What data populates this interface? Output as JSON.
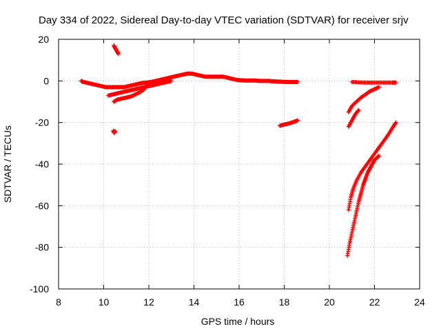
{
  "chart_data": {
    "type": "scatter",
    "title": "Day 334 of 2022, Sidereal Day-to-day VTEC variation (SDTVAR) for receiver srjv",
    "xlabel": "GPS time / hours",
    "ylabel": "SDTVAR / TECUs",
    "xlim": [
      8,
      24
    ],
    "ylim": [
      -100,
      20
    ],
    "xticks": [
      8,
      10,
      12,
      14,
      16,
      18,
      20,
      22,
      24
    ],
    "yticks": [
      -100,
      -80,
      -60,
      -40,
      -20,
      0,
      20
    ],
    "xtick_labels": [
      "8",
      "10",
      "12",
      "14",
      "16",
      "18",
      "20",
      "22",
      "24"
    ],
    "ytick_labels": [
      "-100",
      "-80",
      "-60",
      "-40",
      "-20",
      "0",
      "20"
    ],
    "grid": true,
    "marker_color": "#ff0000",
    "series": [
      {
        "name": "arc-main",
        "points": [
          [
            9.0,
            0
          ],
          [
            9.1,
            -0.5
          ],
          [
            9.3,
            -1
          ],
          [
            9.5,
            -1.5
          ],
          [
            9.7,
            -2
          ],
          [
            9.9,
            -2.5
          ],
          [
            10.1,
            -3
          ],
          [
            10.3,
            -3
          ],
          [
            10.5,
            -3
          ],
          [
            10.7,
            -3
          ],
          [
            10.9,
            -3
          ],
          [
            11.1,
            -2.5
          ],
          [
            11.3,
            -2
          ],
          [
            11.5,
            -1.5
          ],
          [
            11.7,
            -1
          ],
          [
            11.9,
            -0.8
          ],
          [
            12.1,
            -0.5
          ],
          [
            12.3,
            0
          ],
          [
            12.5,
            0.5
          ],
          [
            12.7,
            1
          ],
          [
            12.9,
            1.5
          ],
          [
            13.1,
            2
          ],
          [
            13.3,
            2.5
          ],
          [
            13.5,
            3
          ],
          [
            13.7,
            3.5
          ],
          [
            13.9,
            3.5
          ],
          [
            14.1,
            3
          ],
          [
            14.3,
            2.5
          ],
          [
            14.5,
            2
          ],
          [
            14.7,
            2
          ],
          [
            14.9,
            2
          ],
          [
            15.1,
            2
          ],
          [
            15.3,
            2
          ],
          [
            15.5,
            1.5
          ],
          [
            15.7,
            1
          ],
          [
            15.9,
            0.5
          ],
          [
            16.1,
            0.3
          ],
          [
            16.3,
            0.2
          ],
          [
            16.5,
            0.2
          ],
          [
            16.7,
            0.2
          ],
          [
            16.9,
            0
          ],
          [
            17.1,
            0
          ],
          [
            17.3,
            0
          ],
          [
            17.5,
            -0.2
          ],
          [
            17.7,
            -0.3
          ],
          [
            17.9,
            -0.4
          ],
          [
            18.1,
            -0.5
          ],
          [
            18.3,
            -0.5
          ],
          [
            18.5,
            -0.5
          ],
          [
            18.6,
            -0.5
          ]
        ]
      },
      {
        "name": "arc-lower",
        "points": [
          [
            10.2,
            -7
          ],
          [
            10.4,
            -6.5
          ],
          [
            10.6,
            -6
          ],
          [
            10.8,
            -5.5
          ],
          [
            11.0,
            -5
          ],
          [
            11.2,
            -4.5
          ],
          [
            11.4,
            -4
          ],
          [
            11.6,
            -3.5
          ],
          [
            11.8,
            -3
          ],
          [
            12.0,
            -2.5
          ],
          [
            12.2,
            -2
          ],
          [
            12.4,
            -1.5
          ],
          [
            12.6,
            -1
          ],
          [
            12.8,
            -0.5
          ],
          [
            13.0,
            0
          ]
        ]
      },
      {
        "name": "arc-dip",
        "points": [
          [
            10.45,
            -10
          ],
          [
            10.6,
            -9
          ],
          [
            10.8,
            -8.5
          ],
          [
            11.0,
            -8
          ],
          [
            11.2,
            -7.5
          ],
          [
            11.4,
            -6.5
          ],
          [
            11.6,
            -5.5
          ],
          [
            11.8,
            -4
          ]
        ]
      },
      {
        "name": "arc-spike-up",
        "points": [
          [
            10.45,
            17
          ],
          [
            10.5,
            16
          ],
          [
            10.55,
            15
          ],
          [
            10.6,
            14
          ],
          [
            10.65,
            13
          ]
        ]
      },
      {
        "name": "arc-spike-down",
        "points": [
          [
            10.42,
            -24
          ],
          [
            10.47,
            -25
          ],
          [
            10.5,
            -24
          ]
        ]
      },
      {
        "name": "arc-18h",
        "points": [
          [
            17.8,
            -21.5
          ],
          [
            18.0,
            -21
          ],
          [
            18.2,
            -20.5
          ],
          [
            18.4,
            -19.8
          ],
          [
            18.6,
            -19
          ]
        ]
      },
      {
        "name": "arc-flat-late",
        "points": [
          [
            21.0,
            -0.5
          ],
          [
            21.3,
            -0.7
          ],
          [
            21.6,
            -0.8
          ],
          [
            21.9,
            -0.8
          ],
          [
            22.2,
            -0.8
          ],
          [
            22.5,
            -0.8
          ],
          [
            22.8,
            -0.8
          ],
          [
            22.95,
            -0.8
          ]
        ]
      },
      {
        "name": "arc-late-a",
        "points": [
          [
            20.85,
            -15
          ],
          [
            21.0,
            -12
          ],
          [
            21.2,
            -10
          ],
          [
            21.4,
            -8
          ],
          [
            21.6,
            -6.5
          ],
          [
            21.8,
            -5
          ],
          [
            22.0,
            -4
          ],
          [
            22.2,
            -3
          ]
        ]
      },
      {
        "name": "arc-late-b",
        "points": [
          [
            20.85,
            -22
          ],
          [
            21.0,
            -19
          ],
          [
            21.15,
            -16
          ],
          [
            21.3,
            -14
          ]
        ]
      },
      {
        "name": "arc-late-c",
        "points": [
          [
            20.85,
            -62
          ],
          [
            20.95,
            -56
          ],
          [
            21.05,
            -52
          ],
          [
            21.2,
            -48
          ],
          [
            21.4,
            -44
          ],
          [
            21.6,
            -41
          ],
          [
            21.8,
            -38
          ],
          [
            22.0,
            -35
          ],
          [
            22.2,
            -32
          ],
          [
            22.4,
            -29
          ],
          [
            22.6,
            -26
          ],
          [
            22.8,
            -22.5
          ],
          [
            22.95,
            -20
          ]
        ]
      },
      {
        "name": "arc-late-d",
        "points": [
          [
            20.8,
            -84
          ],
          [
            20.9,
            -78
          ],
          [
            21.0,
            -73
          ],
          [
            21.1,
            -68
          ],
          [
            21.2,
            -63
          ],
          [
            21.3,
            -58
          ],
          [
            21.4,
            -54
          ],
          [
            21.5,
            -50
          ],
          [
            21.6,
            -47
          ],
          [
            21.7,
            -44
          ],
          [
            21.8,
            -42
          ],
          [
            21.9,
            -40
          ],
          [
            22.0,
            -38
          ],
          [
            22.1,
            -37
          ],
          [
            22.2,
            -36
          ]
        ]
      }
    ]
  }
}
